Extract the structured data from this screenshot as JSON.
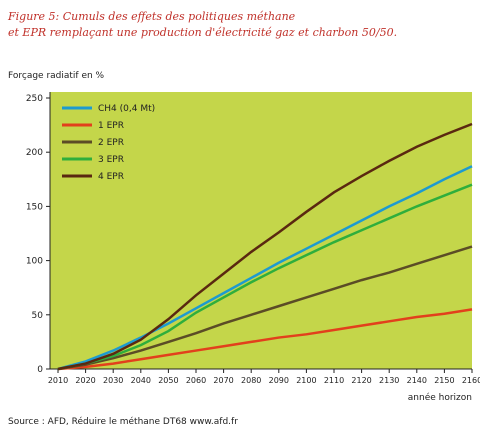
{
  "chart_data": {
    "type": "line",
    "title": "Figure 5: Cumuls des effets des politiques méthane et EPR remplaçant une production d'électricité gaz et charbon 50/50.",
    "y_label": "Forçage radiatif en %",
    "x_label": "année horizon",
    "source": "Source : AFD, Réduire le méthane DT68 www.afd.fr",
    "x": [
      2010,
      2020,
      2030,
      2040,
      2050,
      2060,
      2070,
      2080,
      2090,
      2100,
      2110,
      2120,
      2130,
      2140,
      2150,
      2160
    ],
    "xlim": [
      2010,
      2160
    ],
    "xticks": [
      2010,
      2020,
      2030,
      2040,
      2050,
      2060,
      2070,
      2080,
      2090,
      2100,
      2110,
      2120,
      2130,
      2140,
      2150,
      2160
    ],
    "ylim": [
      0,
      250
    ],
    "yticks": [
      0,
      50,
      100,
      150,
      200,
      250
    ],
    "grid": false,
    "legend": "upper left",
    "series": [
      {
        "name": "CH4 (0,4 Mt)",
        "color": "#1d9ad0",
        "values": [
          0,
          7,
          17,
          29,
          42,
          56,
          70,
          84,
          98,
          111,
          124,
          137,
          150,
          162,
          175,
          187
        ]
      },
      {
        "name": "1 EPR",
        "color": "#e2401c",
        "values": [
          0,
          2,
          5,
          9,
          13,
          17,
          21,
          25,
          29,
          32,
          36,
          40,
          44,
          48,
          51,
          55
        ]
      },
      {
        "name": "2 EPR",
        "color": "#5b4c26",
        "values": [
          0,
          4,
          10,
          17,
          25,
          33,
          42,
          50,
          58,
          66,
          74,
          82,
          89,
          97,
          105,
          113
        ]
      },
      {
        "name": "3 EPR",
        "color": "#2fae3c",
        "values": [
          0,
          5,
          12,
          22,
          35,
          52,
          66,
          80,
          93,
          105,
          117,
          128,
          139,
          150,
          160,
          170
        ]
      },
      {
        "name": "4 EPR",
        "color": "#5a2810",
        "values": [
          0,
          5,
          14,
          27,
          46,
          68,
          88,
          108,
          126,
          145,
          163,
          178,
          192,
          205,
          216,
          226
        ]
      }
    ]
  }
}
